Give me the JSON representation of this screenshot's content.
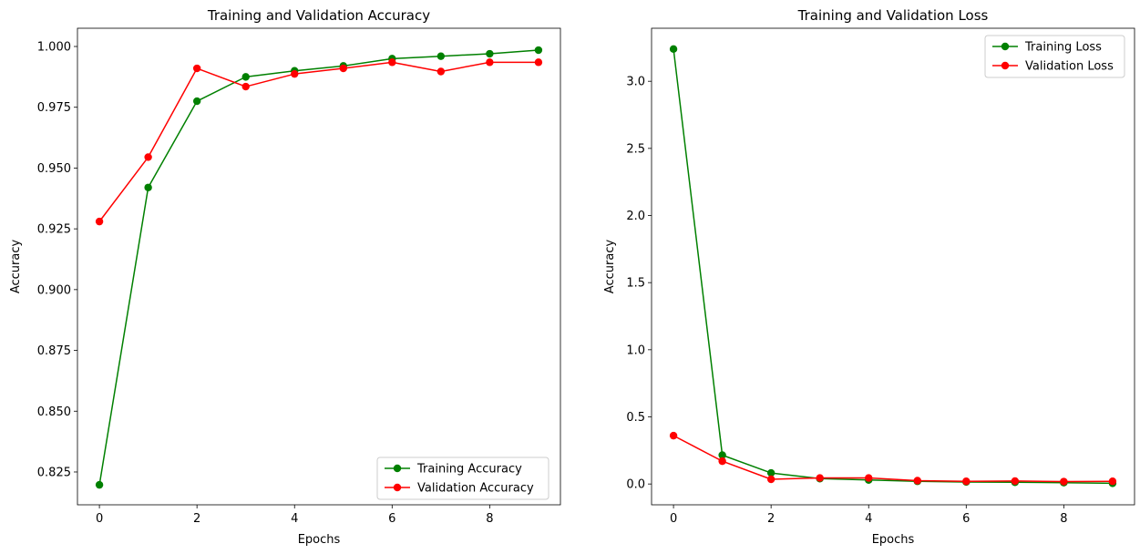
{
  "chart_data": [
    {
      "type": "line",
      "title": "Training and Validation Accuracy",
      "xlabel": "Epochs",
      "ylabel": "Accuracy",
      "x": [
        0,
        1,
        2,
        3,
        4,
        5,
        6,
        7,
        8,
        9
      ],
      "xlim": [
        -0.45,
        9.45
      ],
      "ylim": [
        0.8115,
        1.0075
      ],
      "xticks": [
        0,
        2,
        4,
        6,
        8
      ],
      "yticks": [
        0.825,
        0.85,
        0.875,
        0.9,
        0.925,
        0.95,
        0.975,
        1.0
      ],
      "ytick_labels": [
        "0.825",
        "0.850",
        "0.875",
        "0.900",
        "0.925",
        "0.950",
        "0.975",
        "1.000"
      ],
      "legend_position": "lower-right",
      "grid": false,
      "series": [
        {
          "name": "Training Accuracy",
          "color": "#008000",
          "values": [
            0.8197,
            0.942,
            0.9775,
            0.9875,
            0.99,
            0.992,
            0.995,
            0.996,
            0.997,
            0.9985
          ]
        },
        {
          "name": "Validation Accuracy",
          "color": "#ff0000",
          "values": [
            0.928,
            0.9545,
            0.991,
            0.9835,
            0.9887,
            0.991,
            0.9935,
            0.9897,
            0.9935,
            0.9935
          ]
        }
      ]
    },
    {
      "type": "line",
      "title": "Training and Validation Loss",
      "xlabel": "Epochs",
      "ylabel": "Accuracy",
      "x": [
        0,
        1,
        2,
        3,
        4,
        5,
        6,
        7,
        8,
        9
      ],
      "xlim": [
        -0.45,
        9.45
      ],
      "ylim": [
        -0.155,
        3.395
      ],
      "xticks": [
        0,
        2,
        4,
        6,
        8
      ],
      "yticks": [
        0.0,
        0.5,
        1.0,
        1.5,
        2.0,
        2.5,
        3.0
      ],
      "ytick_labels": [
        "0.0",
        "0.5",
        "1.0",
        "1.5",
        "2.0",
        "2.5",
        "3.0"
      ],
      "legend_position": "top-right",
      "grid": false,
      "series": [
        {
          "name": "Training Loss",
          "color": "#008000",
          "values": [
            3.24,
            0.215,
            0.082,
            0.04,
            0.03,
            0.02,
            0.015,
            0.013,
            0.01,
            0.005
          ]
        },
        {
          "name": "Validation Loss",
          "color": "#ff0000",
          "values": [
            0.36,
            0.17,
            0.035,
            0.045,
            0.045,
            0.025,
            0.02,
            0.022,
            0.018,
            0.02
          ]
        }
      ]
    }
  ]
}
